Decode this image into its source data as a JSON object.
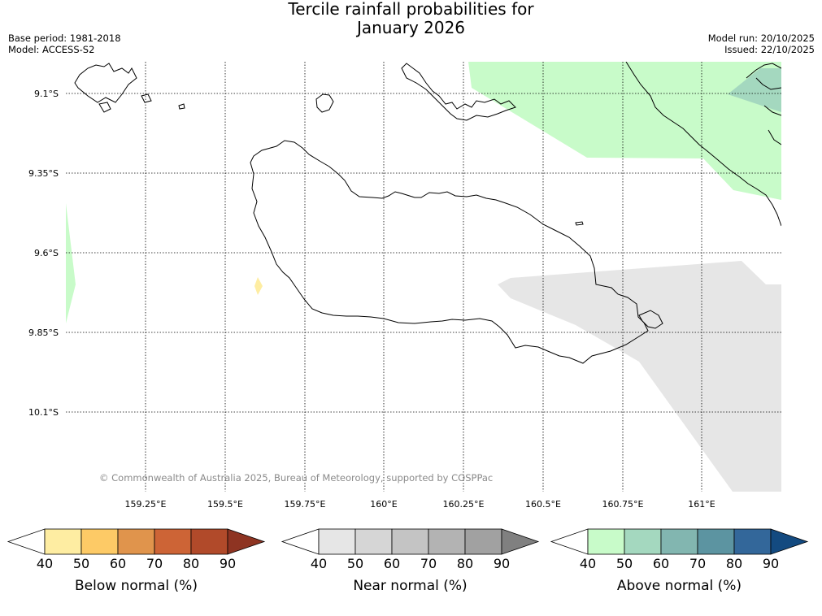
{
  "title_line1": "Tercile rainfall probabilities for",
  "title_line2": "January 2026",
  "meta": {
    "base_period": "Base period: 1981-2018",
    "model": "Model: ACCESS-S2",
    "model_run": "Model run: 20/10/2025",
    "issued": "Issued: 22/10/2025"
  },
  "map": {
    "lat_labels": [
      "9.1°S",
      "9.35°S",
      "9.6°S",
      "9.85°S",
      "10.1°S"
    ],
    "lon_labels": [
      "159.25°E",
      "159.5°E",
      "159.75°E",
      "160°E",
      "160.25°E",
      "160.5°E",
      "160.75°E",
      "161°E"
    ],
    "copyright": "© Commonwealth of Australia 2025, Bureau of Meteorology, supported by COSPPac"
  },
  "colorbars": [
    {
      "label": "Below normal (%)",
      "ticks": [
        "40",
        "50",
        "60",
        "70",
        "80",
        "90"
      ],
      "colors": [
        "#ffffff",
        "#feeda2",
        "#fdca66",
        "#e0944c",
        "#cd6436",
        "#b14a2a",
        "#8e3422"
      ]
    },
    {
      "label": "Near normal (%)",
      "ticks": [
        "40",
        "50",
        "60",
        "70",
        "80",
        "90"
      ],
      "colors": [
        "#ffffff",
        "#e6e6e6",
        "#d6d6d6",
        "#c4c4c4",
        "#b3b3b3",
        "#a1a1a1",
        "#808080"
      ]
    },
    {
      "label": "Above normal (%)",
      "ticks": [
        "40",
        "50",
        "60",
        "70",
        "80",
        "90"
      ],
      "colors": [
        "#ffffff",
        "#c8fbc9",
        "#a4d8bf",
        "#82b6b0",
        "#5c94a1",
        "#33679a",
        "#134a80"
      ]
    }
  ]
}
